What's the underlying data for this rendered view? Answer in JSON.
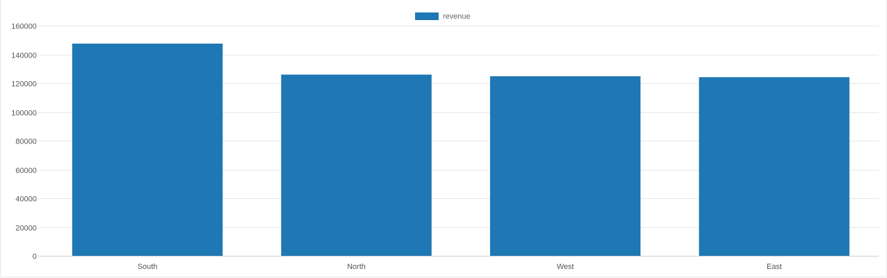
{
  "chart_data": {
    "type": "bar",
    "categories": [
      "South",
      "North",
      "West",
      "East"
    ],
    "series": [
      {
        "name": "revenue",
        "values": [
          147500,
          126000,
          124800,
          124200
        ],
        "color": "#1f77b4"
      }
    ],
    "ylim": [
      0,
      160000
    ],
    "yticks": [
      "0",
      "20000",
      "40000",
      "60000",
      "80000",
      "100000",
      "120000",
      "140000",
      "160000"
    ],
    "grid": true,
    "legend_position": "top-center",
    "title": "",
    "xlabel": "",
    "ylabel": ""
  },
  "colors": {
    "grid": "#e6e6e6",
    "axis": "#cfcfcf",
    "bar": "#1f77b4"
  }
}
